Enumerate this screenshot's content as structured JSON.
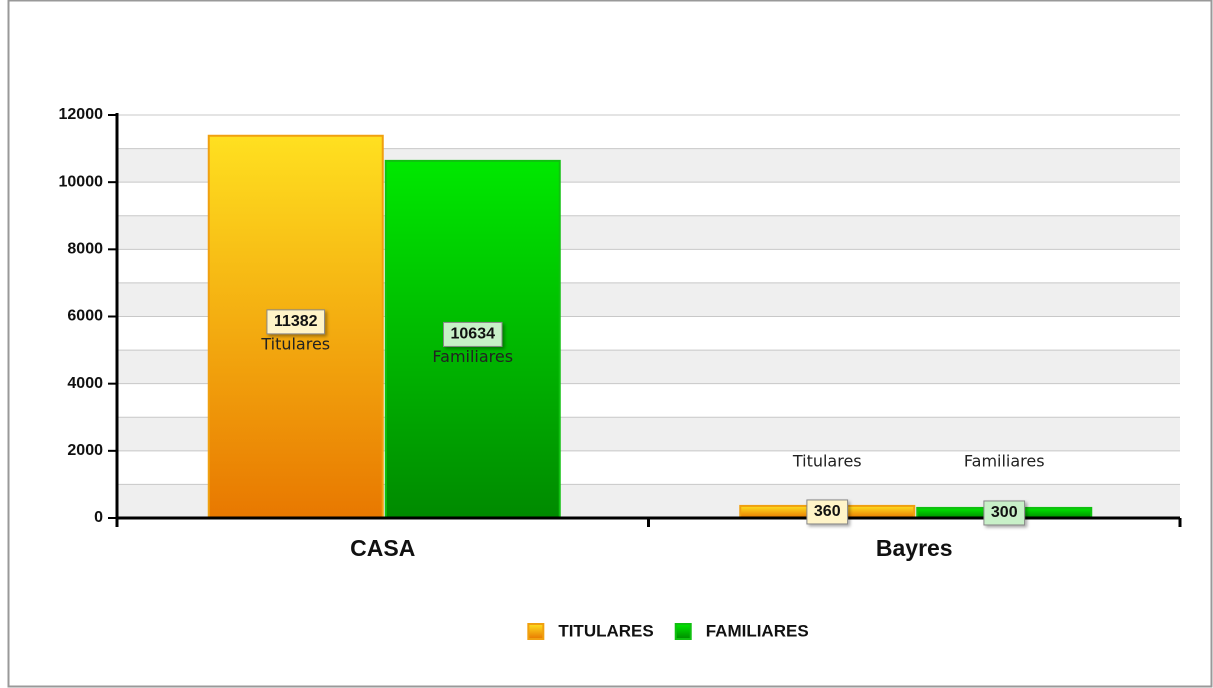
{
  "chart_data": {
    "type": "bar",
    "categories": [
      "CASA",
      "Bayres"
    ],
    "series": [
      {
        "name": "TITULARES",
        "label": "Titulares",
        "color": "#f0a010",
        "values": [
          11382,
          360
        ]
      },
      {
        "name": "FAMILIARES",
        "label": "Familiares",
        "color": "#10c010",
        "values": [
          10634,
          300
        ]
      }
    ],
    "ylim": [
      0,
      12000
    ],
    "yticks": [
      0,
      2000,
      4000,
      6000,
      8000,
      10000,
      12000
    ],
    "grid": true,
    "legend": "bottom"
  }
}
